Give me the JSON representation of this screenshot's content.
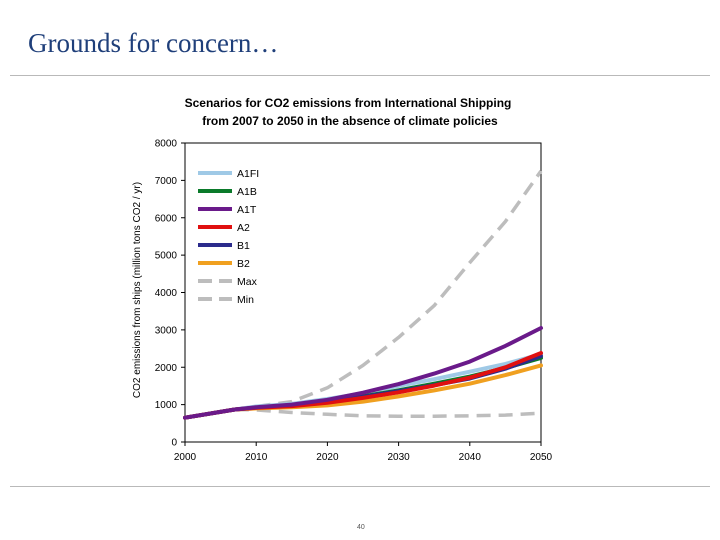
{
  "slide": {
    "title": "Grounds for concern…",
    "page_number": "40"
  },
  "chart_data": {
    "type": "line",
    "title": "Scenarios for CO2 emissions from International Shipping",
    "subtitle": "from 2007 to 2050 in the absence of climate policies",
    "xlabel": "",
    "ylabel": "CO2 emissions from ships (million tons CO2 / yr)",
    "xlim": [
      2000,
      2050
    ],
    "ylim": [
      0,
      8000
    ],
    "xticks": [
      2000,
      2010,
      2020,
      2030,
      2040,
      2050
    ],
    "yticks": [
      0,
      1000,
      2000,
      3000,
      4000,
      5000,
      6000,
      7000,
      8000
    ],
    "grid": false,
    "legend_position": "top-left",
    "series": [
      {
        "name": "A1FI",
        "color": "#9fc9e6",
        "dash": false,
        "x": [
          2000,
          2007,
          2010,
          2015,
          2020,
          2025,
          2030,
          2035,
          2040,
          2045,
          2050
        ],
        "y": [
          650,
          870,
          950,
          1020,
          1150,
          1300,
          1500,
          1680,
          1880,
          2090,
          2350
        ]
      },
      {
        "name": "A1B",
        "color": "#0a7a2a",
        "dash": false,
        "x": [
          2000,
          2007,
          2010,
          2015,
          2020,
          2025,
          2030,
          2035,
          2040,
          2045,
          2050
        ],
        "y": [
          650,
          870,
          920,
          980,
          1080,
          1220,
          1380,
          1560,
          1750,
          1980,
          2250
        ]
      },
      {
        "name": "A1T",
        "color": "#6a1a8a",
        "dash": false,
        "x": [
          2000,
          2007,
          2010,
          2015,
          2020,
          2025,
          2030,
          2035,
          2040,
          2045,
          2050
        ],
        "y": [
          650,
          870,
          930,
          1000,
          1130,
          1320,
          1550,
          1830,
          2150,
          2570,
          3050
        ]
      },
      {
        "name": "A2",
        "color": "#e01010",
        "dash": false,
        "x": [
          2000,
          2007,
          2010,
          2015,
          2020,
          2025,
          2030,
          2035,
          2040,
          2045,
          2050
        ],
        "y": [
          650,
          870,
          915,
          960,
          1050,
          1180,
          1330,
          1510,
          1720,
          2000,
          2380
        ]
      },
      {
        "name": "B1",
        "color": "#2b2b8c",
        "dash": false,
        "x": [
          2000,
          2007,
          2010,
          2015,
          2020,
          2025,
          2030,
          2035,
          2040,
          2045,
          2050
        ],
        "y": [
          650,
          870,
          920,
          990,
          1090,
          1210,
          1360,
          1520,
          1700,
          1960,
          2300
        ]
      },
      {
        "name": "B2",
        "color": "#f0a020",
        "dash": false,
        "x": [
          2000,
          2007,
          2010,
          2015,
          2020,
          2025,
          2030,
          2035,
          2040,
          2045,
          2050
        ],
        "y": [
          650,
          870,
          900,
          930,
          980,
          1080,
          1220,
          1380,
          1560,
          1790,
          2050
        ]
      },
      {
        "name": "Max",
        "color": "#bdbdbd",
        "dash": true,
        "x": [
          2007,
          2010,
          2015,
          2020,
          2025,
          2030,
          2035,
          2040,
          2045,
          2050
        ],
        "y": [
          870,
          950,
          1080,
          1450,
          2050,
          2800,
          3650,
          4800,
          5900,
          7250
        ]
      },
      {
        "name": "Min",
        "color": "#bdbdbd",
        "dash": true,
        "x": [
          2007,
          2010,
          2015,
          2020,
          2025,
          2030,
          2035,
          2040,
          2045,
          2050
        ],
        "y": [
          870,
          860,
          790,
          740,
          700,
          690,
          690,
          700,
          720,
          770
        ]
      }
    ]
  }
}
